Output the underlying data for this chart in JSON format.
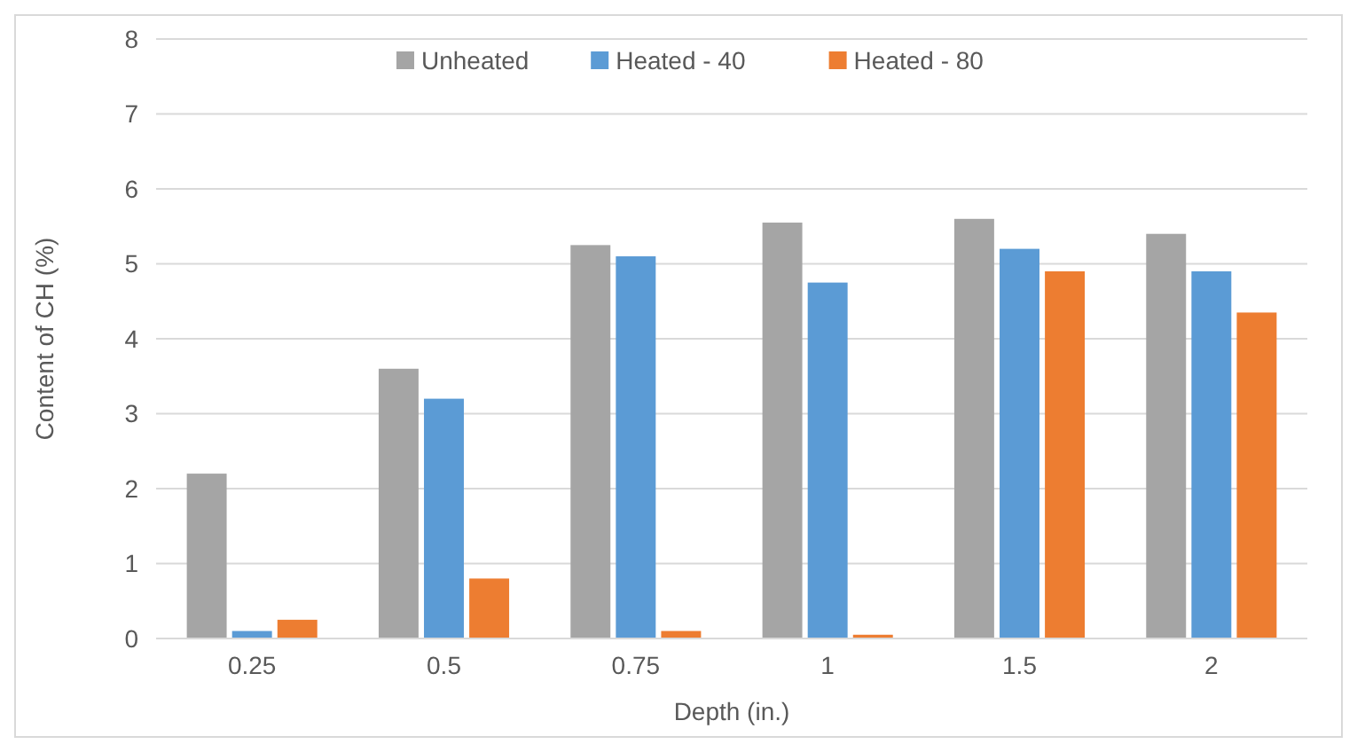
{
  "chart_data": {
    "type": "bar",
    "xlabel": "Depth (in.)",
    "ylabel": "Content of CH (%)",
    "categories": [
      "0.25",
      "0.5",
      "0.75",
      "1",
      "1.5",
      "2"
    ],
    "series": [
      {
        "name": "Unheated",
        "color": "#a5a5a5",
        "values": [
          2.2,
          3.6,
          5.25,
          5.55,
          5.6,
          5.4
        ]
      },
      {
        "name": "Heated - 40",
        "color": "#5b9bd5",
        "values": [
          0.1,
          3.2,
          5.1,
          4.75,
          5.2,
          4.9
        ]
      },
      {
        "name": "Heated - 80",
        "color": "#ed7d31",
        "values": [
          0.25,
          0.8,
          0.1,
          0.05,
          4.9,
          4.35
        ]
      }
    ],
    "ylim": [
      0,
      8
    ],
    "yticks": [
      0,
      1,
      2,
      3,
      4,
      5,
      6,
      7,
      8
    ],
    "grid": "y",
    "legend": "top"
  }
}
